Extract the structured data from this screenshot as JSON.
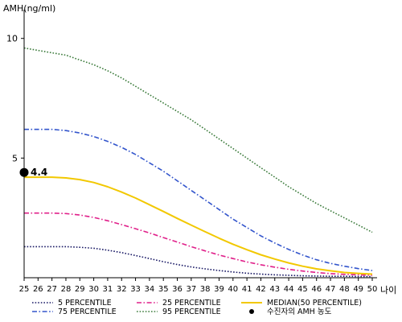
{
  "chart_data": {
    "type": "line",
    "ylabel": "AMH(ng/ml)",
    "xlabel": "나이",
    "xlim": [
      25,
      50
    ],
    "ylim": [
      0,
      11
    ],
    "x_ticks": [
      25,
      26,
      27,
      28,
      29,
      30,
      31,
      32,
      33,
      34,
      35,
      36,
      37,
      38,
      39,
      40,
      41,
      42,
      43,
      44,
      45,
      46,
      47,
      48,
      49,
      50
    ],
    "y_ticks": [
      5,
      10
    ],
    "grid": false,
    "legend_position": "bottom",
    "x": [
      25,
      26,
      27,
      28,
      29,
      30,
      31,
      32,
      33,
      34,
      35,
      36,
      37,
      38,
      39,
      40,
      41,
      42,
      43,
      44,
      45,
      46,
      47,
      48,
      49,
      50
    ],
    "series": [
      {
        "name": "5 PERCENTILE",
        "color": "#1a1a66",
        "dash": "dotted",
        "values": [
          1.3,
          1.3,
          1.3,
          1.3,
          1.27,
          1.23,
          1.15,
          1.05,
          0.93,
          0.8,
          0.67,
          0.55,
          0.45,
          0.37,
          0.3,
          0.24,
          0.19,
          0.15,
          0.12,
          0.1,
          0.08,
          0.07,
          0.06,
          0.06,
          0.05,
          0.05
        ]
      },
      {
        "name": "25 PERCENTILE",
        "color": "#e0208a",
        "dash": "dashdot",
        "values": [
          2.7,
          2.7,
          2.7,
          2.68,
          2.62,
          2.52,
          2.38,
          2.22,
          2.05,
          1.87,
          1.68,
          1.49,
          1.3,
          1.12,
          0.95,
          0.8,
          0.66,
          0.54,
          0.44,
          0.35,
          0.28,
          0.22,
          0.17,
          0.14,
          0.12,
          0.1
        ]
      },
      {
        "name": "95 PERCENTILE",
        "color": "#3a7a3a",
        "dash": "dotted",
        "values": [
          9.6,
          9.5,
          9.4,
          9.3,
          9.1,
          8.9,
          8.65,
          8.35,
          8.0,
          7.65,
          7.3,
          6.95,
          6.6,
          6.2,
          5.8,
          5.4,
          5.0,
          4.6,
          4.2,
          3.8,
          3.45,
          3.1,
          2.8,
          2.5,
          2.2,
          1.9
        ]
      },
      {
        "name": "75 PERCENTILE",
        "color": "#3355cc",
        "dash": "dashdot",
        "values": [
          6.2,
          6.2,
          6.2,
          6.15,
          6.05,
          5.9,
          5.7,
          5.45,
          5.15,
          4.8,
          4.45,
          4.05,
          3.65,
          3.25,
          2.85,
          2.45,
          2.1,
          1.75,
          1.45,
          1.18,
          0.95,
          0.75,
          0.6,
          0.48,
          0.38,
          0.3
        ]
      },
      {
        "name": "MEDIAN(50 PERCENTILE)",
        "color": "#f2c800",
        "dash": "solid",
        "values": [
          4.2,
          4.2,
          4.2,
          4.17,
          4.1,
          3.98,
          3.8,
          3.58,
          3.33,
          3.05,
          2.77,
          2.48,
          2.2,
          1.92,
          1.65,
          1.4,
          1.17,
          0.96,
          0.78,
          0.62,
          0.48,
          0.37,
          0.29,
          0.22,
          0.18,
          0.15
        ]
      }
    ],
    "marker": {
      "name": "수진자의 AMH 농도",
      "x": 25,
      "y": 4.4,
      "label": "4.4",
      "color": "#000000"
    }
  }
}
